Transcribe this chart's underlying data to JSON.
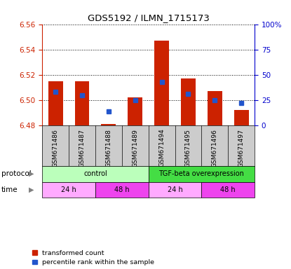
{
  "title": "GDS5192 / ILMN_1715173",
  "samples": [
    "GSM671486",
    "GSM671487",
    "GSM671488",
    "GSM671489",
    "GSM671494",
    "GSM671495",
    "GSM671496",
    "GSM671497"
  ],
  "red_values": [
    6.515,
    6.515,
    6.481,
    6.502,
    6.547,
    6.517,
    6.507,
    6.492
  ],
  "blue_values": [
    0.33,
    0.3,
    0.14,
    0.25,
    0.43,
    0.31,
    0.25,
    0.22
  ],
  "ylim_left": [
    6.48,
    6.56
  ],
  "ylim_right": [
    0,
    1.0
  ],
  "yticks_left": [
    6.48,
    6.5,
    6.52,
    6.54,
    6.56
  ],
  "yticks_right": [
    0,
    0.25,
    0.5,
    0.75,
    1.0
  ],
  "ytick_labels_right": [
    "0",
    "25",
    "50",
    "75",
    "100%"
  ],
  "red_color": "#cc2200",
  "blue_color": "#2255cc",
  "bar_width": 0.55,
  "protocol_groups": [
    {
      "label": "control",
      "start": 0,
      "end": 4,
      "color": "#bbffbb"
    },
    {
      "label": "TGF-beta overexpression",
      "start": 4,
      "end": 8,
      "color": "#44dd44"
    }
  ],
  "time_groups": [
    {
      "label": "24 h",
      "start": 0,
      "end": 2,
      "color": "#ffaaff"
    },
    {
      "label": "48 h",
      "start": 2,
      "end": 4,
      "color": "#ee44ee"
    },
    {
      "label": "24 h",
      "start": 4,
      "end": 6,
      "color": "#ffaaff"
    },
    {
      "label": "48 h",
      "start": 6,
      "end": 8,
      "color": "#ee44ee"
    }
  ],
  "left_tick_color": "#cc2200",
  "right_tick_color": "#0000cc",
  "grid_color": "#000000",
  "xticklabel_bg": "#cccccc"
}
